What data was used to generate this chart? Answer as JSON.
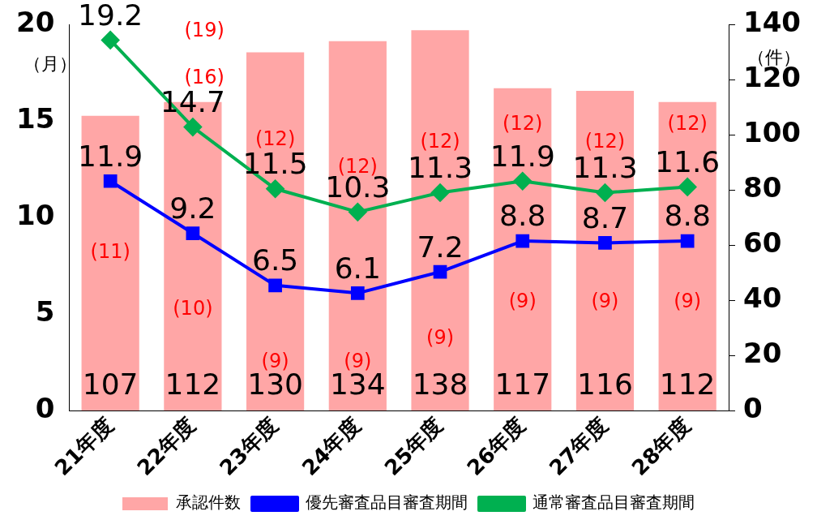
{
  "chart_data": {
    "type": "bar",
    "ylabel": "（月）",
    "y2label": "（件）",
    "categories": [
      "21年度",
      "22年度",
      "23年度",
      "24年度",
      "25年度",
      "26年度",
      "27年度",
      "28年度"
    ],
    "series": [
      {
        "name": "承認件数",
        "axis": "y2",
        "color": "#ffa6a6",
        "values": [
          107,
          112,
          130,
          134,
          138,
          117,
          116,
          112
        ]
      },
      {
        "name": "優先審査品目審査期間",
        "type": "line",
        "axis": "y",
        "color": "#0000ff",
        "marker": "square",
        "values": [
          11.9,
          9.2,
          6.5,
          6.1,
          7.2,
          8.8,
          8.7,
          8.8
        ]
      },
      {
        "name": "通常審査品目審査期間",
        "type": "line",
        "axis": "y",
        "color": "#00b050",
        "marker": "diamond",
        "values": [
          19.2,
          14.7,
          11.5,
          10.3,
          11.3,
          11.9,
          11.3,
          11.6
        ]
      }
    ],
    "ylim": [
      0,
      20
    ],
    "yticks": [
      0,
      5,
      10,
      15,
      20
    ],
    "y2lim": [
      0,
      140
    ],
    "y2ticks": [
      0,
      20,
      40,
      60,
      80,
      100,
      120,
      140
    ],
    "data_labels": true,
    "legend": "bottom",
    "grid": false,
    "annotations": [
      {
        "text": "(11)",
        "x": "21年度",
        "y": 8.2
      },
      {
        "text": "(10)",
        "x": "22年度",
        "y": 5.25
      },
      {
        "text": "(9)",
        "x": "23年度",
        "y": 2.5
      },
      {
        "text": "(9)",
        "x": "24年度",
        "y": 2.5
      },
      {
        "text": "(9)",
        "x": "25年度",
        "y": 3.75
      },
      {
        "text": "(9)",
        "x": "26年度",
        "y": 5.6
      },
      {
        "text": "(9)",
        "x": "27年度",
        "y": 5.6
      },
      {
        "text": "(9)",
        "x": "28年度",
        "y": 5.6
      },
      "(19)",
      "(16)",
      {
        "text": "(12)",
        "x": "23年度",
        "y": 14.0
      },
      {
        "text": "(12)",
        "x": "24年度",
        "y": 12.6
      },
      {
        "text": "(12)",
        "x": "25年度",
        "y": 13.9
      },
      {
        "text": "(12)",
        "x": "26年度",
        "y": 14.8
      },
      {
        "text": "(12)",
        "x": "27年度",
        "y": 13.9
      },
      {
        "text": "(12)",
        "x": "28年度",
        "y": 14.8
      }
    ]
  }
}
